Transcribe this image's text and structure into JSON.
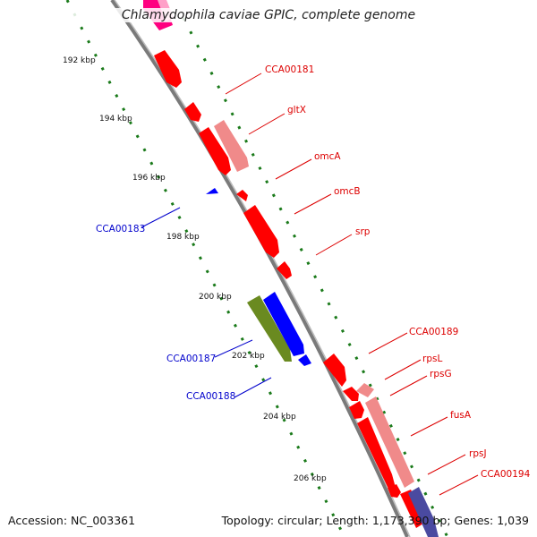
{
  "title": "Chlamydophila caviae GPIC, complete genome",
  "footer": {
    "accession": "Accession: NC_003361",
    "stats": "Topology: circular; Length: 1,173,390 bp; Genes: 1,039"
  },
  "colors": {
    "forward_gene": "#ff0000",
    "forward_gene_light": "#f08a8a",
    "reverse_gene": "#0000ff",
    "rna_gene": "#6a8a20",
    "other_gene": "#4a4aa0",
    "magenta_gene": "#ff0080",
    "tick": "#1a7a1a",
    "backbone": "#7a7a7a",
    "forward_label": "#dd0000",
    "reverse_label": "#0000cc"
  },
  "scale_ticks": [
    "192 kbp",
    "194 kbp",
    "196 kbp",
    "198 kbp",
    "200 kbp",
    "202 kbp",
    "204 kbp",
    "206 kbp"
  ],
  "gene_labels": [
    {
      "text": "CCA00181",
      "strand": "forward"
    },
    {
      "text": "gltX",
      "strand": "forward"
    },
    {
      "text": "omcA",
      "strand": "forward"
    },
    {
      "text": "omcB",
      "strand": "forward"
    },
    {
      "text": "srp",
      "strand": "forward"
    },
    {
      "text": "CCA00183",
      "strand": "reverse"
    },
    {
      "text": "CCA00189",
      "strand": "forward"
    },
    {
      "text": "rpsL",
      "strand": "forward"
    },
    {
      "text": "rpsG",
      "strand": "forward"
    },
    {
      "text": "CCA00187",
      "strand": "reverse"
    },
    {
      "text": "CCA00188",
      "strand": "reverse"
    },
    {
      "text": "fusA",
      "strand": "forward"
    },
    {
      "text": "rpsJ",
      "strand": "forward"
    },
    {
      "text": "CCA00194",
      "strand": "forward"
    }
  ]
}
